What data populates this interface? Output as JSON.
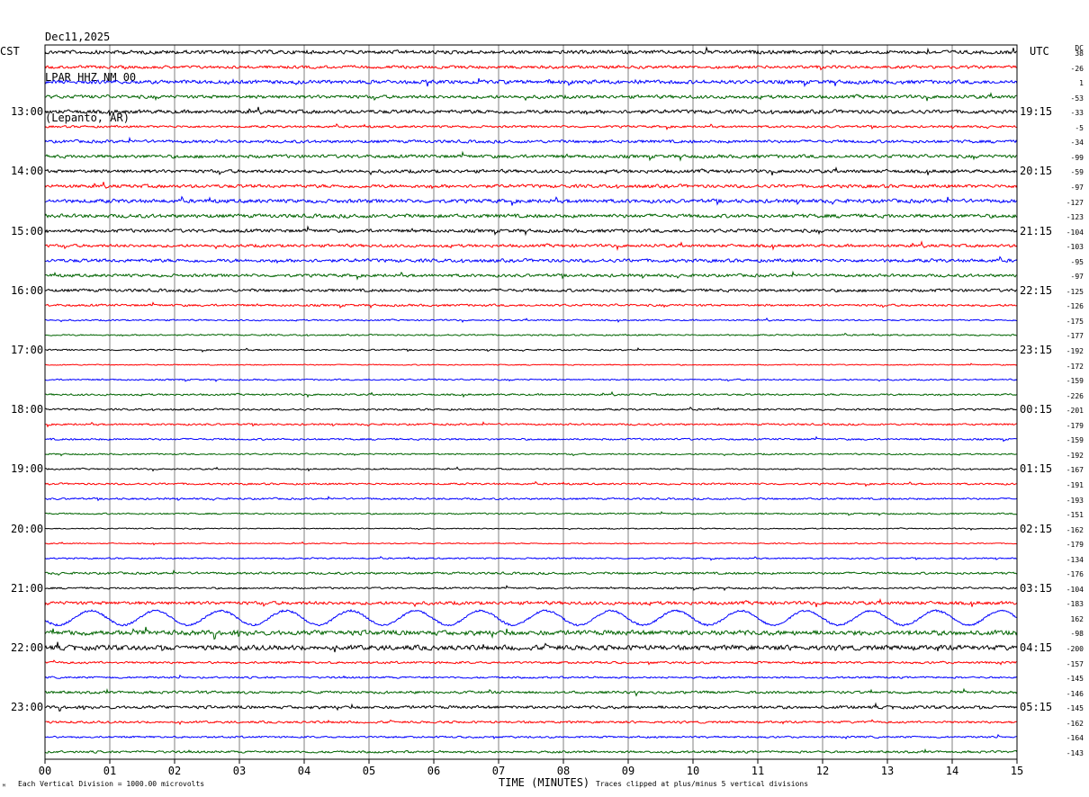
{
  "header": {
    "date": "Dec11,2025",
    "station": "LPAR HHZ NM 00",
    "location": "(Lepanto, AR)"
  },
  "left_axis_title": "CST",
  "right_axis_title": "UTC",
  "dc_title": "DC",
  "footer": {
    "left_note": "Each Vertical Division = 1000.00 microvolts",
    "right_note": "Traces clipped at plus/minus 5 vertical divisions",
    "corner_mark": "ᴹ"
  },
  "colors": {
    "trace_cycle": [
      "#000000",
      "#ff0000",
      "#0000ff",
      "#006400"
    ],
    "grid": "#808080",
    "frame": "#000000"
  },
  "chart_data": {
    "type": "line",
    "title": "",
    "xlabel": "TIME (MINUTES)",
    "ylabel": "",
    "x_tick_labels": [
      "00",
      "01",
      "02",
      "03",
      "04",
      "05",
      "06",
      "07",
      "08",
      "09",
      "10",
      "11",
      "12",
      "13",
      "14",
      "15"
    ],
    "xlim": [
      0,
      15
    ],
    "left_hour_labels": [
      "13:00",
      "14:00",
      "15:00",
      "16:00",
      "17:00",
      "18:00",
      "19:00",
      "20:00",
      "21:00",
      "22:00",
      "23:00"
    ],
    "right_hour_labels": [
      "19:15",
      "20:15",
      "21:15",
      "22:15",
      "23:15",
      "00:15",
      "01:15",
      "02:15",
      "03:15",
      "04:15",
      "05:15"
    ],
    "dc_offsets": [
      "38",
      "-26",
      "1",
      "-53",
      "-33",
      "-5",
      "-34",
      "-99",
      "-59",
      "-97",
      "-127",
      "-123",
      "-104",
      "-103",
      "-95",
      "-97",
      "-125",
      "-126",
      "-175",
      "-177",
      "-192",
      "-172",
      "-159",
      "-226",
      "-201",
      "-179",
      "-159",
      "-192",
      "-167",
      "-191",
      "-193",
      "-151",
      "-162",
      "-179",
      "-134",
      "-176",
      "-104",
      "-183",
      "162",
      "-98",
      "-200",
      "-157",
      "-145",
      "-146",
      "-145",
      "-162",
      "-164",
      "-143"
    ],
    "amplitude_profile": [
      1.0,
      0.8,
      1.0,
      0.9,
      1.0,
      0.6,
      0.8,
      0.9,
      0.9,
      0.9,
      1.0,
      1.0,
      0.9,
      0.8,
      0.9,
      0.8,
      0.8,
      0.6,
      0.4,
      0.4,
      0.4,
      0.3,
      0.4,
      0.5,
      0.5,
      0.5,
      0.5,
      0.4,
      0.4,
      0.5,
      0.5,
      0.4,
      0.3,
      0.3,
      0.4,
      0.6,
      0.5,
      0.9,
      3.0,
      1.3,
      1.3,
      0.6,
      0.5,
      0.7,
      0.8,
      0.6,
      0.5,
      0.6
    ],
    "traces_per_hour": 4,
    "minutes_per_trace": 15,
    "grid": true
  }
}
